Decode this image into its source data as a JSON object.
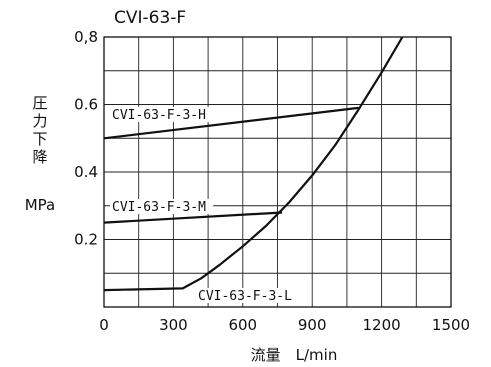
{
  "chart_data": {
    "type": "line",
    "title": "CVI-63-F",
    "xlabel": "流量　L/min",
    "ylabel_chars": [
      "圧",
      "力",
      "下",
      "降"
    ],
    "ylabel_unit": "MPa",
    "xlim": [
      0,
      1500
    ],
    "ylim": [
      0,
      0.8
    ],
    "x_ticks": [
      0,
      300,
      600,
      900,
      1200,
      1500
    ],
    "x_tick_labels": [
      "0",
      "300",
      "600",
      "900",
      "1200",
      "1500"
    ],
    "y_ticks": [
      0.2,
      0.4,
      0.6,
      0.8
    ],
    "y_tick_labels": [
      "0.2",
      "0.4",
      "0.6",
      "0,8"
    ],
    "grid": true,
    "series": [
      {
        "name": "CVI-63-F-3-H",
        "x": [
          0,
          1100
        ],
        "y": [
          0.5,
          0.59
        ]
      },
      {
        "name": "CVI-63-F-3-M",
        "x": [
          0,
          770
        ],
        "y": [
          0.25,
          0.28
        ]
      },
      {
        "name": "CVI-63-F-3-L",
        "x": [
          0,
          340,
          420,
          500,
          600,
          700,
          800,
          900,
          1000,
          1100,
          1200,
          1290
        ],
        "y": [
          0.05,
          0.055,
          0.085,
          0.125,
          0.18,
          0.24,
          0.31,
          0.39,
          0.48,
          0.585,
          0.695,
          0.8
        ]
      }
    ]
  }
}
